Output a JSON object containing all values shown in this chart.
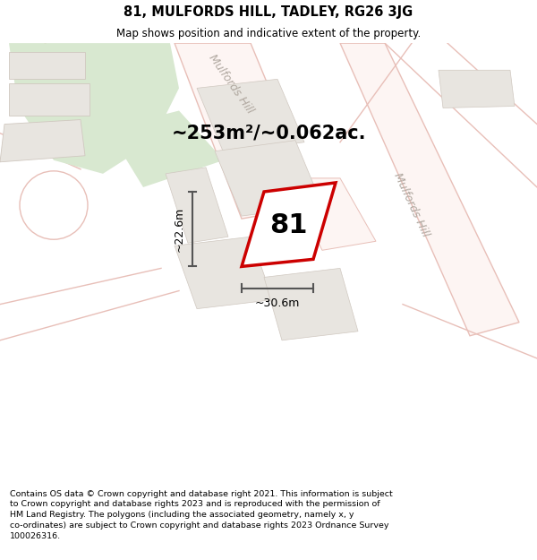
{
  "title": "81, MULFORDS HILL, TADLEY, RG26 3JG",
  "subtitle": "Map shows position and indicative extent of the property.",
  "area_text": "~253m²/~0.062ac.",
  "property_number": "81",
  "dim_width": "~30.6m",
  "dim_height": "~22.6m",
  "bg_color": "#f7f5f2",
  "road_outline_color": "#e8bfb8",
  "road_fill": "#fdf5f3",
  "property_outline_color": "#cc0000",
  "property_fill": "#ffffff",
  "neighbour_fill": "#e8e5e0",
  "neighbour_edge": "#d0c8c0",
  "green_fill": "#d8e8d0",
  "road_label_color": "#b0a8a0",
  "footer_text": "Contains OS data © Crown copyright and database right 2021. This information is subject to Crown copyright and database rights 2023 and is reproduced with the permission of HM Land Registry. The polygons (including the associated geometry, namely x, y co-ordinates) are subject to Crown copyright and database rights 2023 Ordnance Survey 100026316.",
  "road_label": "Mulfords Hill",
  "dim_line_color": "#555555"
}
